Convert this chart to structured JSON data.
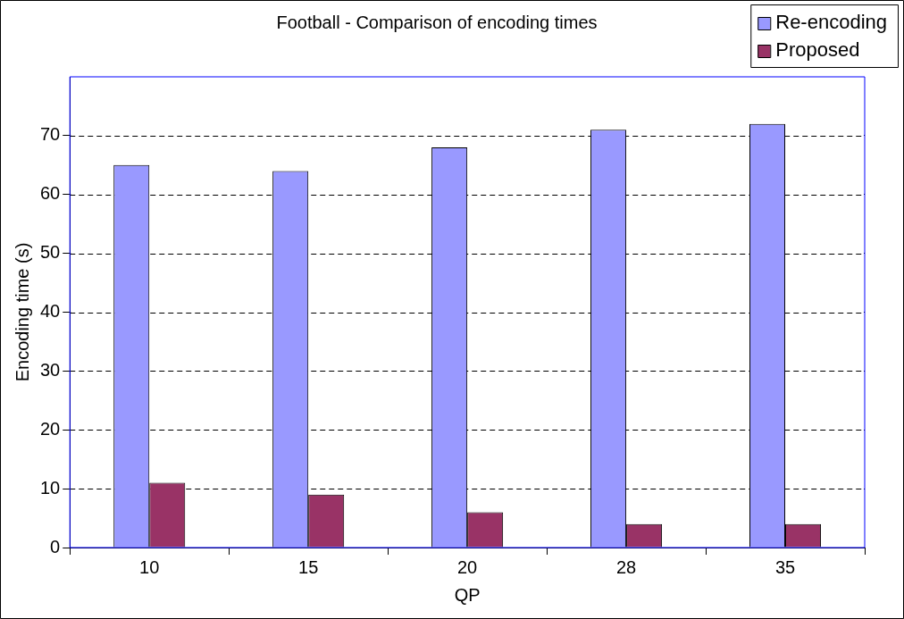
{
  "chart_data": {
    "type": "bar",
    "title": "Football - Comparison of encoding times",
    "xlabel": "QP",
    "ylabel": "Encoding time (s)",
    "categories": [
      "10",
      "15",
      "20",
      "28",
      "35"
    ],
    "series": [
      {
        "name": "Re-encoding",
        "color": "#9999ff",
        "values": [
          65,
          64,
          68,
          71,
          72
        ]
      },
      {
        "name": "Proposed",
        "color": "#993366",
        "values": [
          11,
          9,
          6,
          4,
          4
        ]
      }
    ],
    "ylim": [
      0,
      80
    ],
    "yticks": [
      0,
      10,
      20,
      30,
      40,
      50,
      60,
      70
    ],
    "grid": "y",
    "legend": "top right"
  }
}
